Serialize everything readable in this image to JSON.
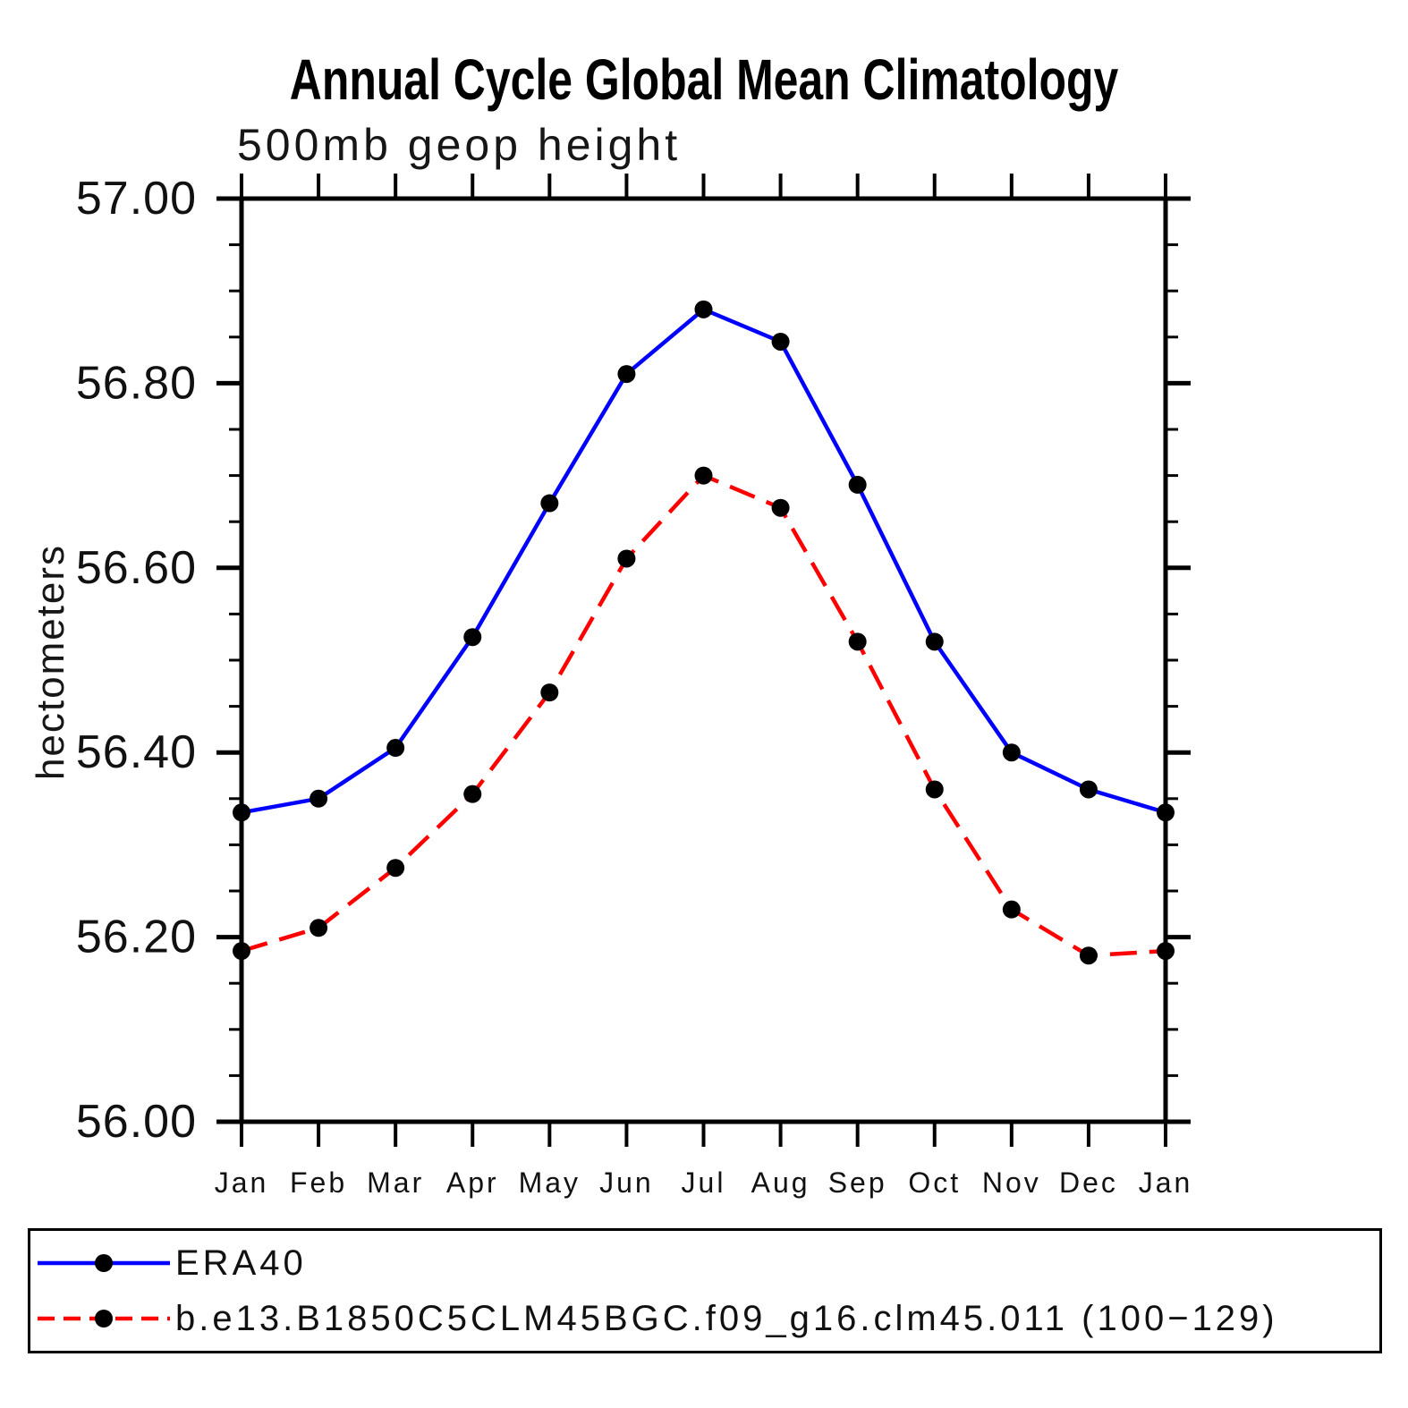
{
  "chart_data": {
    "type": "line",
    "title": "Annual Cycle Global Mean Climatology",
    "subtitle": "500mb geop height",
    "ylabel": "hectometers",
    "x_categories": [
      "Jan",
      "Feb",
      "Mar",
      "Apr",
      "May",
      "Jun",
      "Jul",
      "Aug",
      "Sep",
      "Oct",
      "Nov",
      "Dec",
      "Jan"
    ],
    "ylim": [
      56.0,
      57.0
    ],
    "y_major_ticks": [
      57.0,
      56.8,
      56.6,
      56.4,
      56.2,
      56.0
    ],
    "y_tick_labels": [
      "57.00",
      "56.80",
      "56.60",
      "56.40",
      "56.20",
      "56.00"
    ],
    "y_minor_step": 0.05,
    "grid": false,
    "legend_position": "bottom-left-box",
    "axis_color": "#000000",
    "text_color": "#111111",
    "marker_shape": "filled-circle",
    "marker_color": "#000000",
    "series": [
      {
        "name": "ERA40",
        "color": "#0000ff",
        "line_style": "solid",
        "values": [
          56.335,
          56.35,
          56.405,
          56.525,
          56.67,
          56.81,
          56.88,
          56.845,
          56.69,
          56.52,
          56.4,
          56.36,
          56.335
        ]
      },
      {
        "name": "b.e13.B1850C5CLM45BGC.f09_g16.clm45.011 (100−129)",
        "color": "#ff0000",
        "line_style": "dashed",
        "values": [
          56.185,
          56.21,
          56.275,
          56.355,
          56.465,
          56.61,
          56.7,
          56.665,
          56.52,
          56.36,
          56.23,
          56.18,
          56.185
        ]
      }
    ]
  }
}
